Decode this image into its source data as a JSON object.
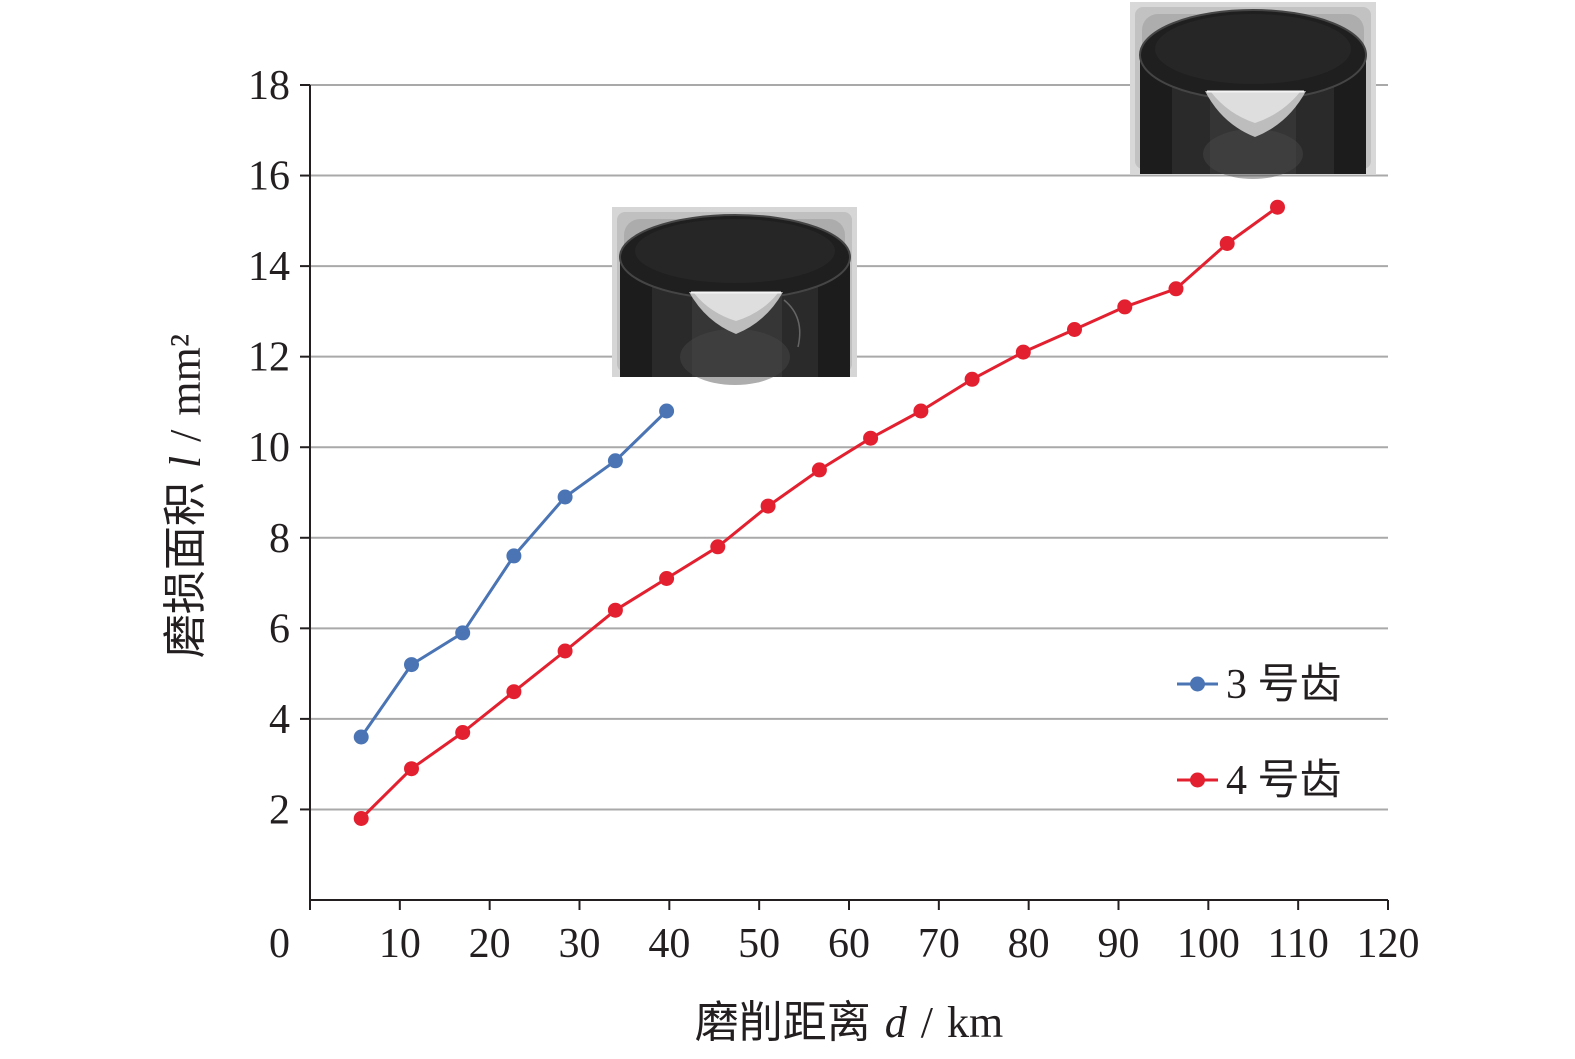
{
  "chart_data": {
    "type": "line",
    "xlabel": "磨削距离 d / km",
    "ylabel": "磨损面积 l / mm²",
    "xlim": [
      0,
      120
    ],
    "ylim": [
      0,
      18
    ],
    "xticks": [
      0,
      10,
      20,
      30,
      40,
      50,
      60,
      70,
      80,
      90,
      100,
      110,
      120
    ],
    "yticks": [
      2,
      4,
      6,
      8,
      10,
      12,
      14,
      16,
      18
    ],
    "grid": "horizontal",
    "legend": "lower-right",
    "series": [
      {
        "name": "3 号齿",
        "color": "#4a74b4",
        "x": [
          5.7,
          11.3,
          17.0,
          22.7,
          28.4,
          34.0,
          39.7
        ],
        "y": [
          3.6,
          5.2,
          5.9,
          7.6,
          8.9,
          9.7,
          10.8
        ]
      },
      {
        "name": "4 号齿",
        "color": "#e3202f",
        "x": [
          5.7,
          11.3,
          17.0,
          22.7,
          28.4,
          34.0,
          39.7,
          45.4,
          51.0,
          56.7,
          62.4,
          68.0,
          73.7,
          79.4,
          85.1,
          90.7,
          96.4,
          102.1,
          107.7
        ],
        "y": [
          1.8,
          2.9,
          3.7,
          4.6,
          5.5,
          6.4,
          7.1,
          7.8,
          8.7,
          9.5,
          10.2,
          10.8,
          11.5,
          12.1,
          12.6,
          13.1,
          13.5,
          14.5,
          15.3
        ]
      }
    ]
  }
}
